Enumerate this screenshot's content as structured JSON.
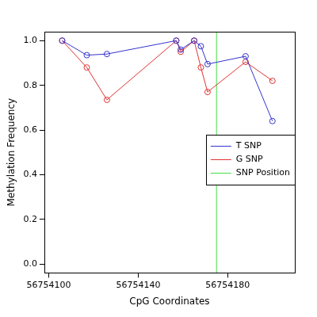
{
  "chart_data": {
    "type": "line",
    "x_label": "CpG Coordinates",
    "y_label": "Methylation Frequency",
    "x": [
      56754106,
      56754117,
      56754126,
      56754157,
      56754159,
      56754165,
      56754168,
      56754171,
      56754188,
      56754200
    ],
    "series": [
      {
        "name": "T SNP",
        "color": "#3333cc",
        "marker": "circle",
        "line_style": "solid",
        "values": [
          1.0,
          0.935,
          0.94,
          1.0,
          0.96,
          1.0,
          0.975,
          0.895,
          0.93,
          0.64
        ]
      },
      {
        "name": "G SNP",
        "color": "#e03333",
        "marker": "circle",
        "line_style": "solid",
        "values": [
          1.0,
          0.88,
          0.735,
          1.0,
          0.95,
          1.0,
          0.88,
          0.77,
          0.905,
          0.82
        ]
      }
    ],
    "snp_position": {
      "name": "SNP Position",
      "x": 56754175,
      "color": "#44dd44"
    },
    "xlim": [
      56754098,
      56754210
    ],
    "ylim": [
      -0.04,
      1.04
    ],
    "xticks": [
      56754100,
      56754140,
      56754180
    ],
    "yticks": [
      {
        "value": 0,
        "label": "0.0"
      },
      {
        "value": 0.2,
        "label": "0.2"
      },
      {
        "value": 0.4,
        "label": "0.4"
      },
      {
        "value": 0.6,
        "label": "0.6"
      },
      {
        "value": 0.8,
        "label": "0.8"
      },
      {
        "value": 1.0,
        "label": "1.0"
      }
    ],
    "grid": false,
    "legend": "right"
  }
}
